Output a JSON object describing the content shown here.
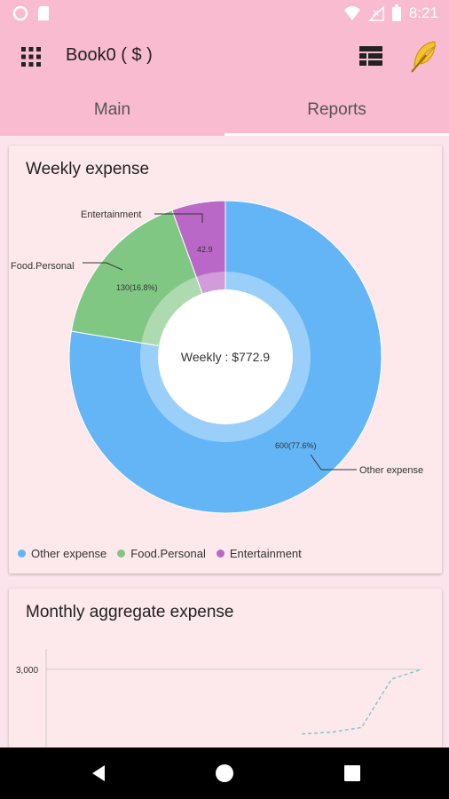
{
  "status_bar": {
    "time": "8:21",
    "icons": [
      "circle-icon",
      "sd-card-icon",
      "wifi-icon",
      "no-signal-icon",
      "battery-icon"
    ]
  },
  "app_bar": {
    "title": "Book0 ( $ )",
    "menu_icon": "grid-icon",
    "actions": [
      "table-icon",
      "feather-icon"
    ]
  },
  "tabs": [
    {
      "label": "Main",
      "active": false
    },
    {
      "label": "Reports",
      "active": true
    }
  ],
  "weekly_card": {
    "title": "Weekly expense",
    "center_label": "Weekly : $772.9",
    "legend": [
      "Other expense",
      "Food.Personal",
      "Entertainment"
    ]
  },
  "monthly_card": {
    "title": "Monthly aggregate expense",
    "y_tick": "3,000"
  },
  "colors": {
    "other": "#64b5f6",
    "food": "#81c784",
    "entertainment": "#ba68c8",
    "background": "#fce4ec",
    "appbar": "#f8bbd0"
  },
  "chart_data": [
    {
      "type": "pie",
      "title": "Weekly expense",
      "center_label": "Weekly : $772.9",
      "categories": [
        "Other expense",
        "Food.Personal",
        "Entertainment"
      ],
      "values": [
        600,
        130,
        42.9
      ],
      "data_labels": [
        "600(77.6%)",
        "130(16.8%)",
        "42.9"
      ],
      "legend": "bottom"
    },
    {
      "type": "line",
      "title": "Monthly aggregate expense",
      "y_ticks": [
        "3,000"
      ],
      "series": [
        {
          "values": [
            1000,
            1050,
            1200,
            2700,
            3000
          ]
        }
      ]
    }
  ],
  "nav_bar": {
    "buttons": [
      "back-icon",
      "home-icon",
      "recents-icon"
    ]
  }
}
